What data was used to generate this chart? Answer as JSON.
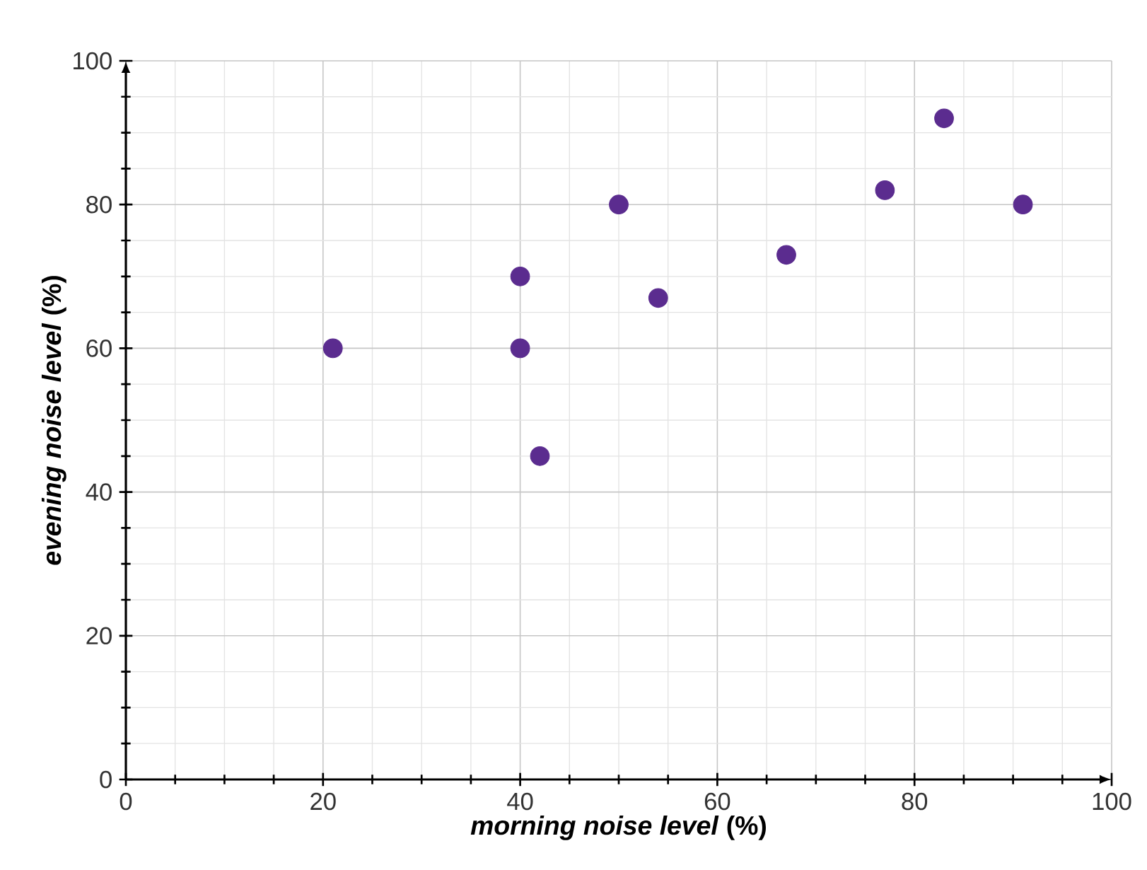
{
  "chart_data": {
    "type": "scatter",
    "xlabel": "*morning noise level* (%)",
    "ylabel": "*evening noise level* (%)",
    "x": [
      21,
      40,
      40,
      42,
      50,
      54,
      67,
      77,
      83,
      91
    ],
    "series": [
      {
        "color": "#5b2c8f",
        "values": [
          60,
          70,
          60,
          45,
          80,
          67,
          73,
          82,
          92,
          80
        ]
      }
    ],
    "xlim": [
      0,
      100
    ],
    "ylim": [
      0,
      100
    ],
    "xticks": [
      0,
      20,
      40,
      60,
      80,
      100
    ],
    "yticks": [
      0,
      20,
      40,
      60,
      80,
      100
    ],
    "grid": true,
    "marker": "circle"
  }
}
